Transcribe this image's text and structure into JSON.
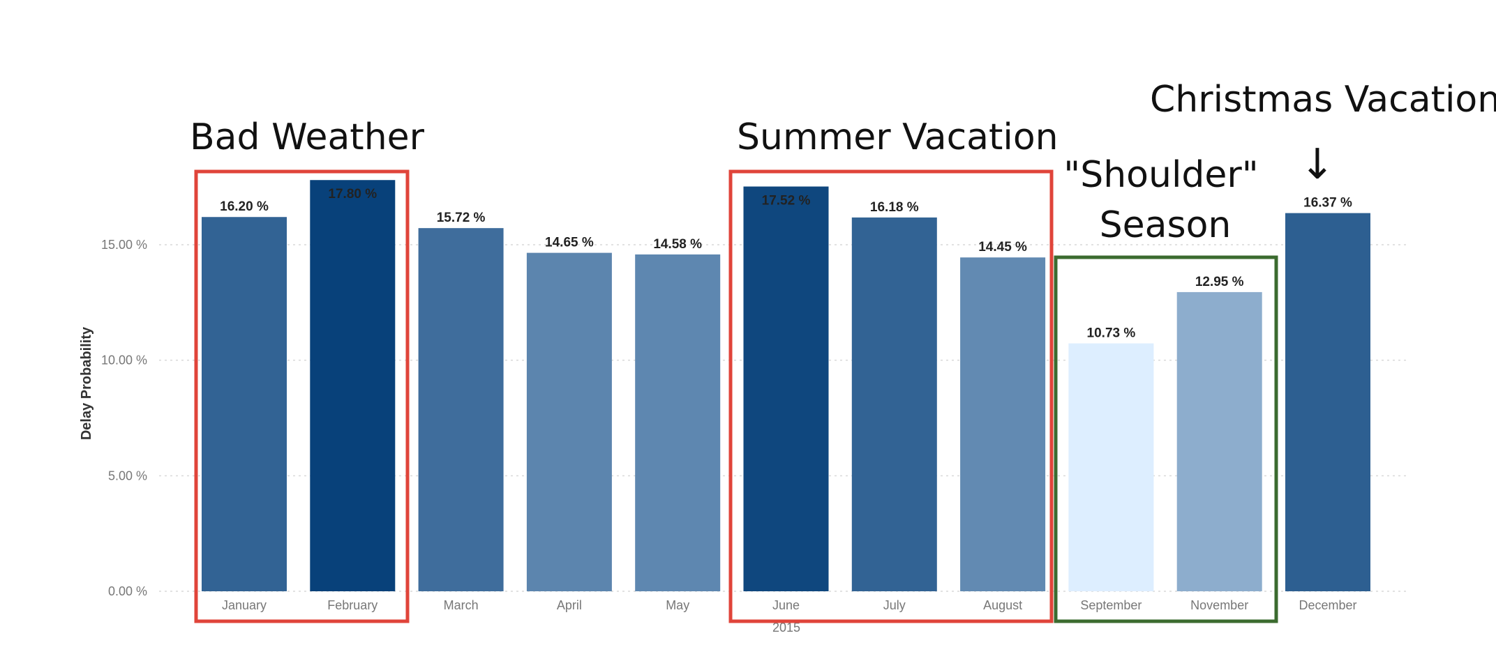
{
  "chart_data": {
    "type": "bar",
    "title": "",
    "xlabel": "2015",
    "ylabel": "Delay Probability",
    "ylim": [
      0,
      18.5
    ],
    "yticks": [
      0,
      5,
      10,
      15
    ],
    "ytick_labels": [
      "0.00 %",
      "5.00 %",
      "10.00 %",
      "15.00 %"
    ],
    "grid": "horizontal dotted",
    "categories": [
      "January",
      "February",
      "March",
      "April",
      "May",
      "June",
      "July",
      "August",
      "September",
      "November",
      "December"
    ],
    "values": [
      16.2,
      17.8,
      15.72,
      14.65,
      14.58,
      17.52,
      16.18,
      14.45,
      10.73,
      12.95,
      16.37
    ],
    "value_labels": [
      "16.20 %",
      "17.80 %",
      "15.72 %",
      "14.65 %",
      "14.58 %",
      "17.52 %",
      "16.18 %",
      "14.45 %",
      "10.73 %",
      "12.95 %",
      "16.37 %"
    ],
    "color_scale": {
      "low": "#ddeeff",
      "high": "#08417a"
    },
    "annotations": [
      {
        "text": "Bad Weather",
        "box_color": "#e0443a",
        "from": 0,
        "to": 1
      },
      {
        "text": "Summer Vacation",
        "box_color": "#e0443a",
        "from": 5,
        "to": 7
      },
      {
        "text_lines": [
          "\"Shoulder\"",
          "Season"
        ],
        "box_color": "#3b6b2f",
        "from": 8,
        "to": 9
      },
      {
        "text": "Christmas Vacation",
        "arrow": "↓",
        "target": 10
      }
    ]
  }
}
